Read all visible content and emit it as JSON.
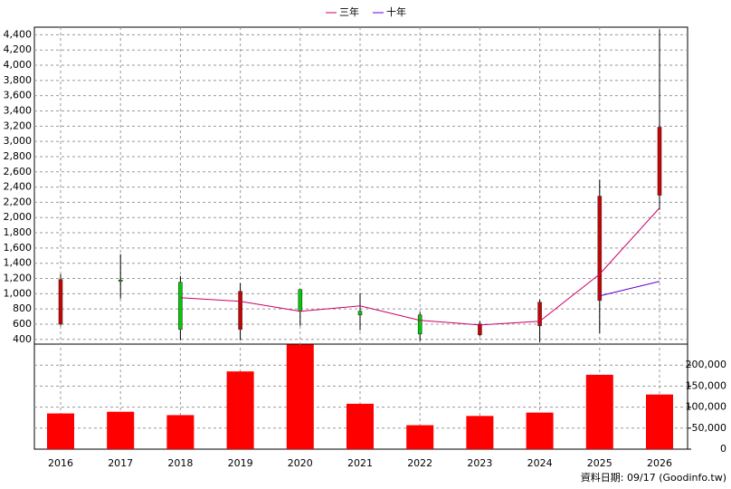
{
  "chart_data": {
    "type": "candlestick",
    "categories": [
      "2016",
      "2017",
      "2018",
      "2019",
      "2020",
      "2021",
      "2022",
      "2023",
      "2024",
      "2025",
      "2026"
    ],
    "open": [
      602,
      1180,
      1150,
      531,
      1055,
      769,
      721,
      460,
      579,
      912,
      2293
    ],
    "high": [
      1257,
      1519,
      1233,
      1138,
      1055,
      1007,
      757,
      640,
      924,
      2495,
      4471
    ],
    "low": [
      579,
      936,
      388,
      388,
      579,
      519,
      376,
      440,
      364,
      483,
      2102
    ],
    "close": [
      1186,
      1170,
      531,
      1031,
      769,
      721,
      471,
      602,
      888,
      2281,
      3186
    ],
    "up_color": "#cc0000",
    "down_color": "#00cc00",
    "lines": [
      {
        "name": "三年",
        "color": "#cc0066",
        "values": [
          null,
          null,
          948,
          900,
          769,
          840,
          650,
          590,
          638,
          1257,
          2126
        ]
      },
      {
        "name": "十年",
        "color": "#6600cc",
        "values": [
          null,
          null,
          null,
          null,
          null,
          null,
          null,
          null,
          null,
          971,
          1162
        ]
      }
    ],
    "ylim": [
      350,
      4500
    ],
    "yticks": [
      400,
      600,
      800,
      {
        "value": 1000,
        "label": "1,000"
      },
      {
        "value": 1200,
        "label": "1,200"
      },
      {
        "value": 1400,
        "label": "1,400"
      },
      {
        "value": 1600,
        "label": "1,600"
      },
      {
        "value": 1800,
        "label": "1,800"
      },
      {
        "value": 2000,
        "label": "2,000"
      },
      {
        "value": 2200,
        "label": "2,200"
      },
      {
        "value": 2400,
        "label": "2,400"
      },
      {
        "value": 2600,
        "label": "2,600"
      },
      {
        "value": 2800,
        "label": "2,800"
      },
      {
        "value": 3000,
        "label": "3,000"
      },
      {
        "value": 3200,
        "label": "3,200"
      },
      {
        "value": 3400,
        "label": "3,400"
      },
      {
        "value": 3600,
        "label": "3,600"
      },
      {
        "value": 3800,
        "label": "3,800"
      },
      {
        "value": 4000,
        "label": "4,000"
      },
      {
        "value": 4200,
        "label": "4,200"
      },
      {
        "value": 4400,
        "label": "4,400"
      }
    ],
    "volume": {
      "color": "#ff0000",
      "values": [
        85000,
        89000,
        81000,
        185000,
        249000,
        108000,
        57000,
        79000,
        87000,
        177000,
        130000
      ],
      "ylim": [
        0,
        250000
      ],
      "yticks": [
        0,
        {
          "value": 50000,
          "label": "50,000"
        },
        {
          "value": 100000,
          "label": "100,000"
        },
        {
          "value": 150000,
          "label": "150,000"
        },
        {
          "value": 200000,
          "label": "200,000"
        }
      ]
    },
    "grid": true,
    "source": "資料日期: 09/17  (Goodinfo.tw)"
  }
}
